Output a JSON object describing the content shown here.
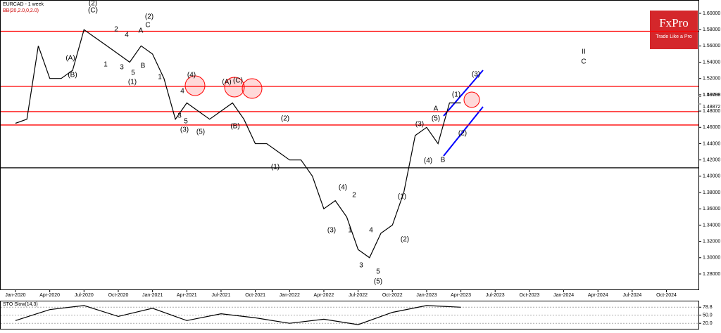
{
  "chart_data": [
    {
      "type": "line",
      "title": "EURCAD - 1 week",
      "subtitle": "BB(20,2.0,0,2.0)",
      "brand": "FxPro",
      "tagline": "Trade Like a Pro",
      "color": "#000000",
      "x": [
        "Jan-2020",
        "Feb-2020",
        "Mar-2020",
        "Apr-2020",
        "May-2020",
        "Jun-2020",
        "Jul-2020",
        "Aug-2020",
        "Sep-2020",
        "Oct-2020",
        "Nov-2020",
        "Dec-2020",
        "Jan-2021",
        "Feb-2021",
        "Mar-2021",
        "Apr-2021",
        "May-2021",
        "Jun-2021",
        "Jul-2021",
        "Aug-2021",
        "Sep-2021",
        "Oct-2021",
        "Nov-2021",
        "Dec-2021",
        "Jan-2022",
        "Feb-2022",
        "Mar-2022",
        "Apr-2022",
        "May-2022",
        "Jun-2022",
        "Jul-2022",
        "Aug-2022",
        "Sep-2022",
        "Oct-2022",
        "Nov-2022",
        "Dec-2022",
        "Jan-2023",
        "Feb-2023",
        "Mar-2023",
        "Apr-2023"
      ],
      "values": [
        1.465,
        1.47,
        1.56,
        1.52,
        1.52,
        1.53,
        1.58,
        1.57,
        1.56,
        1.55,
        1.54,
        1.56,
        1.55,
        1.52,
        1.47,
        1.49,
        1.48,
        1.47,
        1.48,
        1.49,
        1.47,
        1.44,
        1.44,
        1.43,
        1.42,
        1.42,
        1.4,
        1.36,
        1.37,
        1.35,
        1.31,
        1.3,
        1.33,
        1.34,
        1.38,
        1.45,
        1.46,
        1.44,
        1.49,
        1.49
      ],
      "xticks": [
        "Jan-2020",
        "Apr-2020",
        "Jul-2020",
        "Oct-2020",
        "Jan-2021",
        "Apr-2021",
        "Jul-2021",
        "Oct-2021",
        "Jan-2022",
        "Apr-2022",
        "Jul-2022",
        "Oct-2022",
        "Jan-2023",
        "Apr-2023",
        "Jul-2023",
        "Oct-2023",
        "Jan-2024",
        "Apr-2024",
        "Jul-2024",
        "Oct-2024"
      ],
      "ylim": [
        1.261,
        1.6155
      ],
      "yticks": [
        {
          "value": 1.28,
          "label": "1.28000"
        },
        {
          "value": 1.3,
          "label": "1.30000"
        },
        {
          "value": 1.32,
          "label": "1.32000"
        },
        {
          "value": 1.34,
          "label": "1.34000"
        },
        {
          "value": 1.36,
          "label": "1.36000"
        },
        {
          "value": 1.38,
          "label": "1.38000"
        },
        {
          "value": 1.4,
          "label": "1.40000"
        },
        {
          "value": 1.42,
          "label": "1.42000"
        },
        {
          "value": 1.44,
          "label": "1.44000"
        },
        {
          "value": 1.46,
          "label": "1.46000"
        },
        {
          "value": 1.48,
          "label": "1.48000"
        },
        {
          "value": 1.5,
          "label": "1.50000"
        },
        {
          "value": 1.52,
          "label": "1.52000"
        },
        {
          "value": 1.54,
          "label": "1.54000"
        },
        {
          "value": 1.56,
          "label": "1.56000"
        },
        {
          "value": 1.58,
          "label": "1.58000"
        },
        {
          "value": 1.6,
          "label": "1.60000"
        }
      ],
      "levels": [
        {
          "value": 1.578,
          "color": "#ff0000"
        },
        {
          "value": 1.5103,
          "color": "#ff0000"
        },
        {
          "value": 1.4793,
          "color": "#ff0000"
        },
        {
          "value": 1.4629,
          "color": "#ff0000"
        },
        {
          "value": 1.4103,
          "color": "#000000"
        }
      ],
      "price_labels": [
        {
          "value": 1.49788,
          "label": "1.49788"
        },
        {
          "value": 1.48872,
          "label": "1.48872"
        }
      ],
      "annotations": [
        "(2)",
        "(C)",
        "(A)",
        "(B)",
        "(2)",
        "C",
        "A",
        "2",
        "4",
        "1",
        "3",
        "5",
        "B",
        "(1)",
        "1",
        "(4)",
        "4",
        "3",
        "5",
        "(3)",
        "(5)",
        "(A)",
        "(C)",
        "(B)",
        "(2)",
        "(1)",
        "(4)",
        "2",
        "(3)",
        "1",
        "4",
        "3",
        "5",
        "(5)",
        "(1)",
        "(2)",
        "(3)",
        "(4)",
        "(5)",
        "A",
        "B",
        "(1)",
        "(2)",
        "(3)",
        "II",
        "C"
      ]
    },
    {
      "type": "line",
      "title": "STO Slow(14,3)",
      "color": "#000000",
      "x": [
        "Jan-2020",
        "Apr-2020",
        "Jul-2020",
        "Oct-2020",
        "Jan-2021",
        "Apr-2021",
        "Jul-2021",
        "Oct-2021",
        "Jan-2022",
        "Apr-2022",
        "Jul-2022",
        "Oct-2022",
        "Jan-2023",
        "Apr-2023"
      ],
      "values": [
        30,
        70,
        85,
        45,
        75,
        30,
        55,
        40,
        20,
        35,
        15,
        60,
        85,
        78.8
      ],
      "ylim": [
        0,
        100
      ],
      "yticks": [
        78.8,
        {
          "value": 50,
          "label": "50.0"
        },
        {
          "value": 20,
          "label": "20.0"
        }
      ]
    }
  ]
}
